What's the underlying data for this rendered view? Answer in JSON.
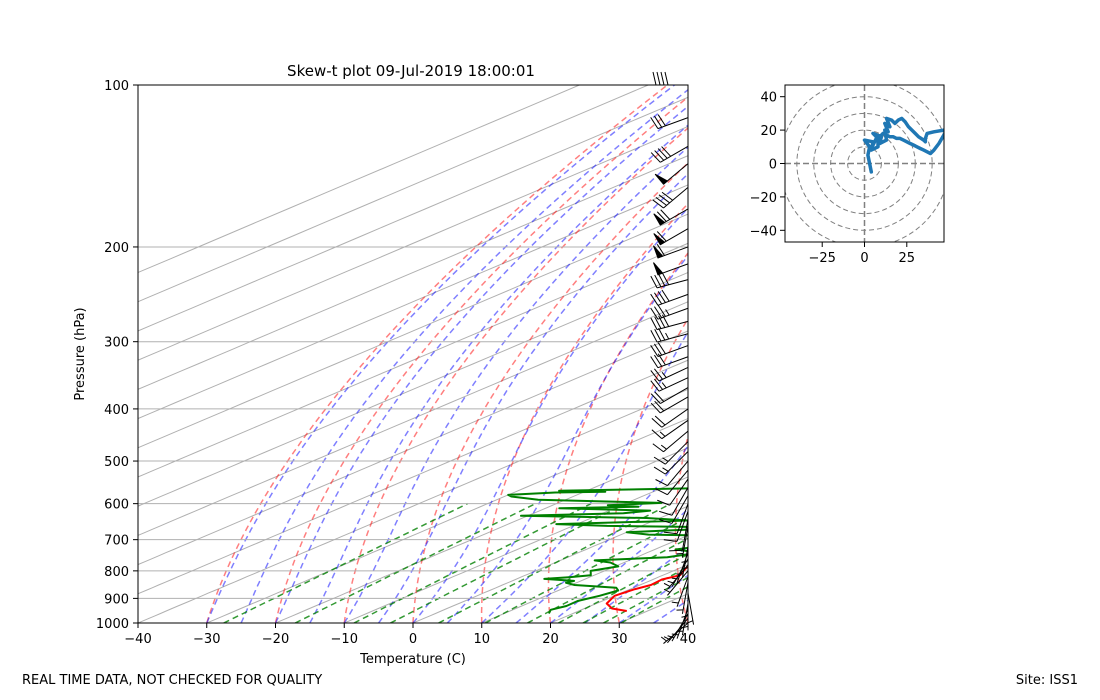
{
  "chart_data": [
    {
      "type": "skew-t",
      "title": "Skew-t plot 09-Jul-2019 18:00:01",
      "xlabel": "Temperature (C)",
      "ylabel": "Pressure (hPa)",
      "xlim": [
        -40,
        40
      ],
      "ylim": [
        1000,
        100
      ],
      "y_scale": "log",
      "x_ticks": [
        "−40",
        "−30",
        "−20",
        "−10",
        "0",
        "10",
        "20",
        "30",
        "40"
      ],
      "y_ticks": [
        "100",
        "200",
        "300",
        "400",
        "500",
        "600",
        "700",
        "800",
        "900",
        "1000"
      ],
      "grid": true,
      "series": [
        {
          "color": "#ff0000",
          "points": [
            [
              27,
              950
            ],
            [
              24,
              940
            ],
            [
              21.5,
              920
            ],
            [
              20,
              890
            ],
            [
              20.7,
              865
            ],
            [
              21.6,
              850
            ],
            [
              21.3,
              830
            ],
            [
              22.5,
              815
            ],
            [
              21.5,
              800
            ],
            [
              20.9,
              790
            ],
            [
              20.6,
              775
            ],
            [
              20,
              760
            ],
            [
              19.8,
              740
            ],
            [
              18.8,
              720
            ],
            [
              18.2,
              700
            ],
            [
              19.2,
              685
            ],
            [
              19,
              670
            ],
            [
              19.5,
              650
            ],
            [
              19,
              630
            ],
            [
              19.2,
              610
            ],
            [
              19,
              590
            ],
            [
              19,
              570
            ],
            [
              18.5,
              550
            ],
            [
              18.3,
              530
            ],
            [
              17.5,
              510
            ],
            [
              17.3,
              490
            ],
            [
              17,
              470
            ],
            [
              16,
              450
            ],
            [
              14.5,
              440
            ],
            [
              13,
              430
            ],
            [
              11.5,
              415
            ],
            [
              10.5,
              400
            ],
            [
              9.5,
              385
            ],
            [
              8.8,
              370
            ],
            [
              8,
              355
            ],
            [
              7,
              345
            ],
            [
              6,
              335
            ],
            [
              5.2,
              325
            ],
            [
              4.5,
              310
            ],
            [
              3.5,
              295
            ],
            [
              2.7,
              283
            ],
            [
              2,
              275
            ],
            [
              0.5,
              260
            ],
            [
              -0.5,
              250
            ],
            [
              -2,
              242
            ],
            [
              -3.2,
              230
            ],
            [
              -4.5,
              220
            ],
            [
              -6,
              210
            ],
            [
              -7.2,
              200
            ],
            [
              -8.5,
              190
            ],
            [
              -9.8,
              180
            ],
            [
              -11,
              172
            ],
            [
              -12,
              165
            ],
            [
              -12.8,
              160
            ],
            [
              -13.5,
              155
            ],
            [
              -14.3,
              150
            ],
            [
              -15,
              148
            ],
            [
              -16.5,
              145
            ],
            [
              -18,
              141
            ],
            [
              -18.8,
              137
            ],
            [
              -18.7,
              133
            ],
            [
              -19.2,
              128
            ],
            [
              -20,
              125
            ],
            [
              -19.8,
              122
            ],
            [
              -20.5,
              118
            ],
            [
              -21.3,
              116
            ],
            [
              -21.7,
              112
            ],
            [
              -22.3,
              109
            ],
            [
              -22.7,
              106
            ],
            [
              -23.2,
              104
            ],
            [
              -22.5,
              102
            ],
            [
              -21.8,
              100
            ]
          ]
        },
        {
          "color": "#008000",
          "points": [
            [
              16.5,
              960
            ],
            [
              15.5,
              945
            ],
            [
              16.5,
              930
            ],
            [
              16.4,
              910
            ],
            [
              17.8,
              890
            ],
            [
              18.7,
              870
            ],
            [
              17.5,
              860
            ],
            [
              10.5,
              850
            ],
            [
              8.5,
              842
            ],
            [
              9,
              835
            ],
            [
              4,
              828
            ],
            [
              7,
              822
            ],
            [
              9.5,
              815
            ],
            [
              8,
              800
            ],
            [
              10.5,
              785
            ],
            [
              8,
              772
            ],
            [
              5,
              765
            ],
            [
              14.5,
              755
            ],
            [
              17.5,
              740
            ],
            [
              13,
              730
            ],
            [
              17.5,
              712
            ],
            [
              12.5,
              700
            ],
            [
              19,
              690
            ],
            [
              4,
              685
            ],
            [
              0,
              678
            ],
            [
              8.8,
              670
            ],
            [
              9.2,
              663
            ],
            [
              -5,
              660
            ],
            [
              -13,
              655
            ],
            [
              5,
              645
            ],
            [
              -2,
              638
            ],
            [
              -21,
              632
            ],
            [
              -7,
              625
            ],
            [
              -4,
              618
            ],
            [
              -18,
              612
            ],
            [
              -7,
              608
            ],
            [
              -12,
              604
            ],
            [
              -5,
              598
            ],
            [
              -24,
              590
            ],
            [
              -29,
              582
            ],
            [
              -30,
              578
            ],
            [
              -24,
              572
            ],
            [
              -17,
              570
            ],
            [
              -24,
              568
            ],
            [
              0,
              560
            ],
            [
              5,
              555
            ],
            [
              3,
              545
            ],
            [
              2,
              535
            ],
            [
              -7,
              528
            ],
            [
              -3,
              522
            ],
            [
              1,
              515
            ],
            [
              0,
              510
            ],
            [
              -3,
              505
            ],
            [
              0,
              497
            ],
            [
              3,
              488
            ],
            [
              -2,
              480
            ],
            [
              0,
              470
            ],
            [
              -4,
              462
            ],
            [
              -4,
              452
            ],
            [
              -5,
              440
            ],
            [
              -7,
              430
            ],
            [
              -11,
              420
            ],
            [
              -8,
              408
            ],
            [
              -12,
              400
            ],
            [
              -15,
              393
            ],
            [
              -17,
              383
            ],
            [
              -13,
              378
            ],
            [
              -16,
              370
            ],
            [
              -15,
              362
            ],
            [
              -14,
              355
            ],
            [
              -14,
              347
            ],
            [
              -16,
              340
            ],
            [
              -19,
              330
            ],
            [
              -20,
              322
            ],
            [
              -23,
              313
            ],
            [
              -25,
              304
            ],
            [
              -28,
              298
            ],
            [
              -29,
              290
            ],
            [
              -31,
              280
            ],
            [
              -33,
              272
            ],
            [
              -34,
              264
            ],
            [
              -35,
              257
            ],
            [
              -37,
              250
            ],
            [
              -38,
              243
            ],
            [
              -39,
              236
            ],
            [
              -40,
              229
            ],
            [
              -41,
              222
            ],
            [
              -41,
              215
            ],
            [
              -42,
              208
            ],
            [
              -43,
              201
            ],
            [
              -44,
              195
            ],
            [
              -45,
              190
            ],
            [
              -46,
              185
            ],
            [
              -47,
              180
            ],
            [
              -48,
              176
            ],
            [
              -51,
              172
            ],
            [
              -55,
              168
            ],
            [
              -58,
              164
            ],
            [
              -56,
              161
            ],
            [
              -53,
              158
            ],
            [
              -50,
              155
            ],
            [
              -52,
              152
            ],
            [
              -54,
              149
            ],
            [
              -54,
              146
            ],
            [
              -54,
              142
            ],
            [
              -55,
              138
            ],
            [
              -57,
              134
            ],
            [
              -58,
              131
            ],
            [
              -56,
              127
            ],
            [
              -54,
              124
            ],
            [
              -53,
              121
            ],
            [
              -53,
              117
            ],
            [
              -52,
              114
            ],
            [
              -52,
              110
            ],
            [
              -51,
              106
            ],
            [
              -50,
              103
            ],
            [
              -49,
              100
            ]
          ]
        }
      ],
      "wind_barbs": [
        [
          100,
          270,
          40
        ],
        [
          115,
          250,
          30
        ],
        [
          130,
          240,
          40
        ],
        [
          140,
          230,
          50
        ],
        [
          155,
          230,
          40
        ],
        [
          170,
          240,
          70
        ],
        [
          185,
          240,
          60
        ],
        [
          200,
          250,
          60
        ],
        [
          215,
          250,
          50
        ],
        [
          230,
          255,
          40
        ],
        [
          245,
          250,
          40
        ],
        [
          260,
          250,
          35
        ],
        [
          275,
          255,
          40
        ],
        [
          290,
          255,
          35
        ],
        [
          305,
          250,
          30
        ],
        [
          320,
          250,
          30
        ],
        [
          335,
          245,
          25
        ],
        [
          350,
          245,
          25
        ],
        [
          365,
          240,
          20
        ],
        [
          380,
          240,
          20
        ],
        [
          400,
          235,
          20
        ],
        [
          420,
          235,
          15
        ],
        [
          440,
          230,
          15
        ],
        [
          460,
          225,
          15
        ],
        [
          480,
          225,
          15
        ],
        [
          500,
          220,
          10
        ],
        [
          520,
          220,
          10
        ],
        [
          540,
          215,
          10
        ],
        [
          560,
          210,
          10
        ],
        [
          580,
          210,
          10
        ],
        [
          600,
          200,
          10
        ],
        [
          620,
          200,
          10
        ],
        [
          640,
          190,
          10
        ],
        [
          660,
          190,
          5
        ],
        [
          680,
          180,
          5
        ],
        [
          700,
          180,
          5
        ],
        [
          720,
          190,
          5
        ],
        [
          740,
          200,
          5
        ],
        [
          760,
          210,
          5
        ],
        [
          780,
          220,
          5
        ],
        [
          800,
          220,
          5
        ],
        [
          820,
          200,
          5
        ],
        [
          840,
          190,
          5
        ],
        [
          860,
          180,
          5
        ],
        [
          880,
          170,
          5
        ],
        [
          900,
          180,
          5
        ],
        [
          920,
          190,
          5
        ],
        [
          940,
          200,
          5
        ],
        [
          960,
          210,
          5
        ],
        [
          980,
          220,
          5
        ],
        [
          1000,
          230,
          5
        ]
      ]
    },
    {
      "type": "hodograph",
      "xlim": [
        -47,
        47
      ],
      "ylim": [
        -47,
        47
      ],
      "x_ticks": [
        "−25",
        "0",
        "25"
      ],
      "y_ticks": [
        "40",
        "20",
        "0",
        "−20",
        "−40"
      ],
      "rings": [
        10,
        20,
        30,
        40,
        50
      ],
      "color": "#1f77b4",
      "points": [
        [
          4,
          -5
        ],
        [
          2,
          5
        ],
        [
          3,
          10
        ],
        [
          0,
          14
        ],
        [
          5,
          13
        ],
        [
          4,
          8
        ],
        [
          8,
          10
        ],
        [
          8,
          15
        ],
        [
          5,
          18
        ],
        [
          10,
          16
        ],
        [
          9,
          12
        ],
        [
          13,
          14
        ],
        [
          12,
          20
        ],
        [
          14,
          19
        ],
        [
          12,
          24
        ],
        [
          15,
          22
        ],
        [
          13,
          27
        ],
        [
          16,
          26
        ],
        [
          18,
          24
        ],
        [
          20,
          26
        ],
        [
          22,
          27
        ],
        [
          24,
          25
        ],
        [
          26,
          22
        ],
        [
          28,
          20
        ],
        [
          30,
          18
        ],
        [
          32,
          16
        ],
        [
          35,
          14
        ],
        [
          36,
          13
        ],
        [
          36,
          15
        ],
        [
          37,
          18
        ],
        [
          41,
          19
        ],
        [
          47,
          20
        ],
        [
          48,
          19
        ],
        [
          44,
          12
        ],
        [
          41,
          8
        ],
        [
          39,
          6
        ],
        [
          37,
          7
        ],
        [
          35,
          8
        ],
        [
          33,
          9
        ],
        [
          31,
          10
        ],
        [
          29,
          11
        ],
        [
          27,
          12
        ],
        [
          25,
          13
        ],
        [
          23,
          14
        ],
        [
          21,
          15
        ],
        [
          19,
          15
        ],
        [
          17,
          16
        ],
        [
          15,
          16
        ],
        [
          13,
          17
        ],
        [
          11,
          18
        ],
        [
          9,
          16
        ],
        [
          7,
          15
        ],
        [
          6,
          13
        ],
        [
          5,
          11
        ],
        [
          4,
          9
        ]
      ]
    }
  ],
  "footer": {
    "disclaimer": "REAL TIME DATA, NOT CHECKED FOR QUALITY",
    "site": "Site: ISS1"
  }
}
